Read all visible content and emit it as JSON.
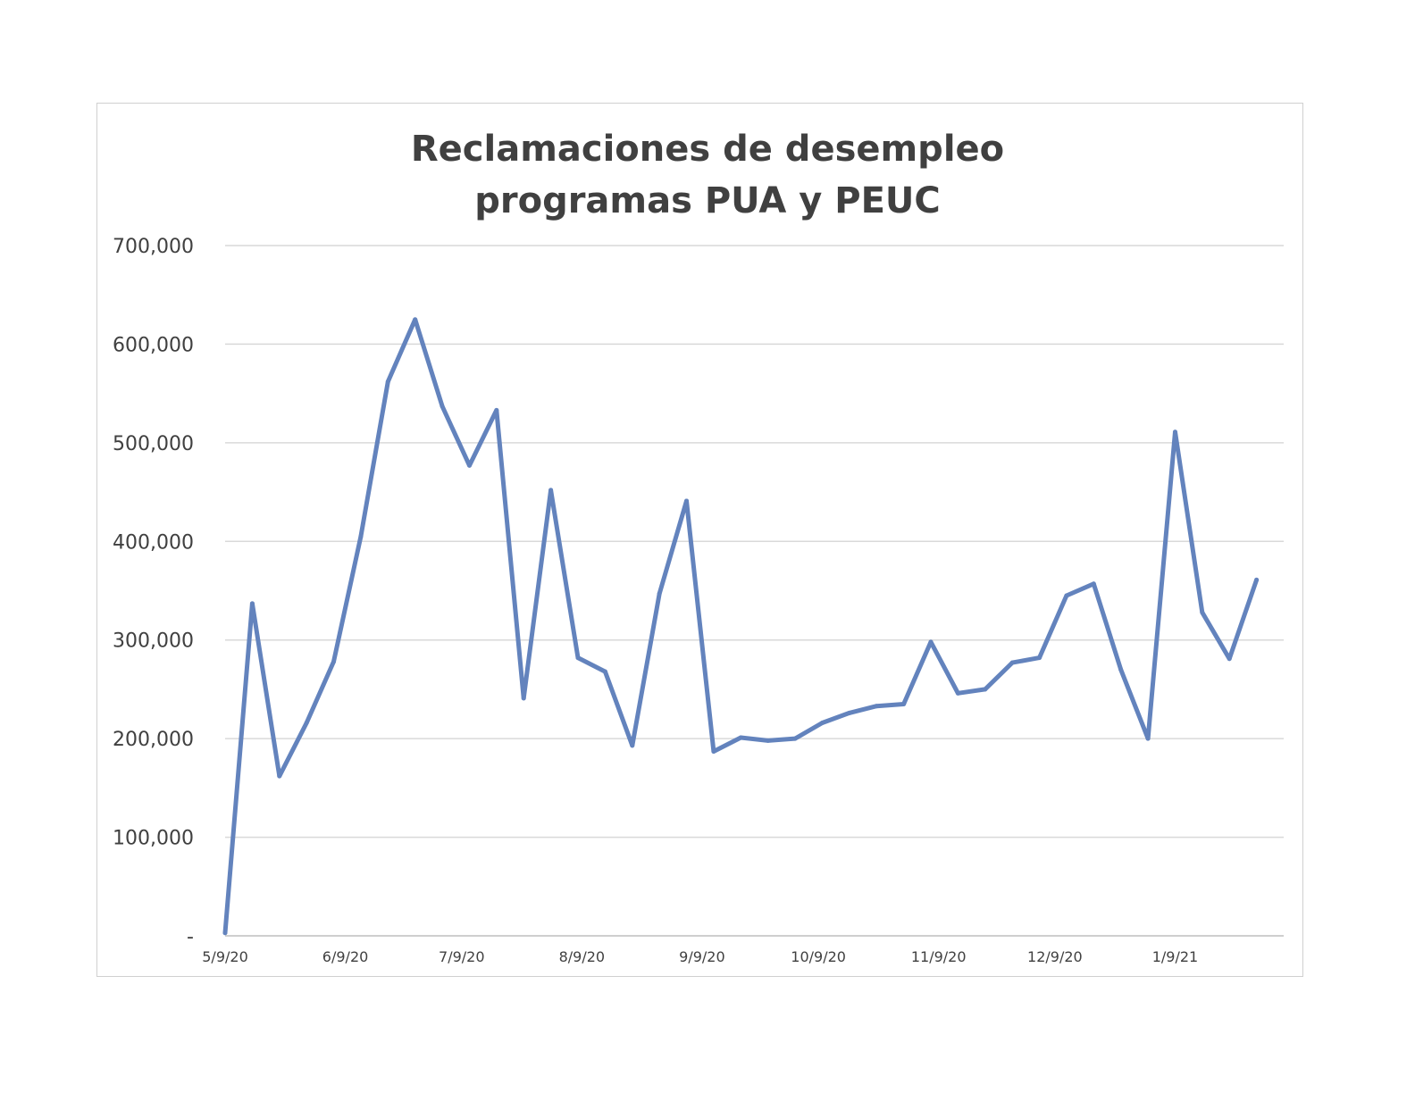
{
  "chart_data": {
    "type": "line",
    "title_lines": [
      "Reclamaciones de desempleo",
      "programas PUA y PEUC"
    ],
    "xlabel": "",
    "ylabel": "",
    "ylim": [
      0,
      700000
    ],
    "y_ticks": [
      {
        "value": 0,
        "label": "-"
      },
      {
        "value": 100000,
        "label": "100,000"
      },
      {
        "value": 200000,
        "label": "200,000"
      },
      {
        "value": 300000,
        "label": "300,000"
      },
      {
        "value": 400000,
        "label": "400,000"
      },
      {
        "value": 500000,
        "label": "500,000"
      },
      {
        "value": 600000,
        "label": "600,000"
      },
      {
        "value": 700000,
        "label": "700,000"
      }
    ],
    "x_ticks": [
      {
        "date": "2020-05-09",
        "label": "5/9/20"
      },
      {
        "date": "2020-06-09",
        "label": "6/9/20"
      },
      {
        "date": "2020-07-09",
        "label": "7/9/20"
      },
      {
        "date": "2020-08-09",
        "label": "8/9/20"
      },
      {
        "date": "2020-09-09",
        "label": "9/9/20"
      },
      {
        "date": "2020-10-09",
        "label": "10/9/20"
      },
      {
        "date": "2020-11-09",
        "label": "11/9/20"
      },
      {
        "date": "2020-12-09",
        "label": "12/9/20"
      },
      {
        "date": "2021-01-09",
        "label": "1/9/21"
      }
    ],
    "xlim": [
      "2020-05-09",
      "2021-02-06"
    ],
    "grid": true,
    "legend": "none",
    "line_color": "#6383bd",
    "series": [
      {
        "x": [
          "2020-05-09",
          "2020-05-16",
          "2020-05-23",
          "2020-05-30",
          "2020-06-06",
          "2020-06-13",
          "2020-06-20",
          "2020-06-27",
          "2020-07-04",
          "2020-07-11",
          "2020-07-18",
          "2020-07-25",
          "2020-08-01",
          "2020-08-08",
          "2020-08-15",
          "2020-08-22",
          "2020-08-29",
          "2020-09-05",
          "2020-09-12",
          "2020-09-19",
          "2020-09-26",
          "2020-10-03",
          "2020-10-10",
          "2020-10-17",
          "2020-10-24",
          "2020-10-31",
          "2020-11-07",
          "2020-11-14",
          "2020-11-21",
          "2020-11-28",
          "2020-12-05",
          "2020-12-12",
          "2020-12-19",
          "2020-12-26",
          "2021-01-02",
          "2021-01-09",
          "2021-01-16",
          "2021-01-23",
          "2021-01-30"
        ],
        "values": [
          3000,
          337000,
          162000,
          216000,
          278000,
          405000,
          562000,
          625000,
          537000,
          477000,
          533000,
          241000,
          452000,
          282000,
          268000,
          193000,
          347000,
          441000,
          187000,
          201000,
          198000,
          200000,
          216000,
          226000,
          233000,
          235000,
          298000,
          246000,
          250000,
          277000,
          282000,
          345000,
          357000,
          270000,
          200000,
          511000,
          328000,
          281000,
          361000
        ]
      }
    ]
  }
}
